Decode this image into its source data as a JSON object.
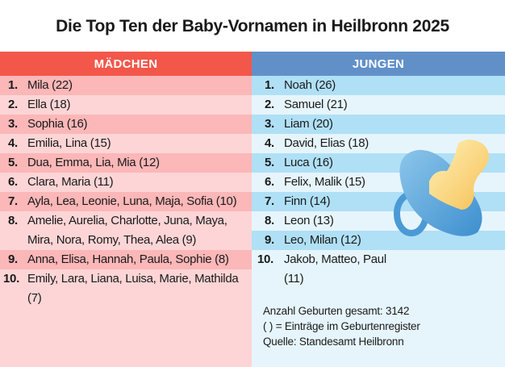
{
  "title": "Die Top Ten der Baby-Vornamen in Heilbronn 2025",
  "girls": {
    "header": "MÄDCHEN",
    "rows": [
      {
        "rank": "1.",
        "names": "Mila (22)"
      },
      {
        "rank": "2.",
        "names": "Ella (18)"
      },
      {
        "rank": "3.",
        "names": "Sophia (16)"
      },
      {
        "rank": "4.",
        "names": "Emilia, Lina (15)"
      },
      {
        "rank": "5.",
        "names": "Dua, Emma, Lia, Mia (12)"
      },
      {
        "rank": "6.",
        "names": "Clara, Maria (11)"
      },
      {
        "rank": "7.",
        "names": "Ayla, Lea, Leonie, Luna, Maja, Sofia (10)"
      },
      {
        "rank": "8.",
        "names": "Amelie, Aurelia, Charlotte, Juna, Maya, Mira, Nora, Romy, Thea, Alea (9)"
      },
      {
        "rank": "9.",
        "names": "Anna, Elisa, Hannah, Paula, Sophie (8)"
      },
      {
        "rank": "10.",
        "names": "Emily, Lara, Liana, Luisa, Marie, Mathilda (7)"
      }
    ]
  },
  "boys": {
    "header": "JUNGEN",
    "rows": [
      {
        "rank": "1.",
        "names": "Noah (26)"
      },
      {
        "rank": "2.",
        "names": "Samuel (21)"
      },
      {
        "rank": "3.",
        "names": "Liam (20)"
      },
      {
        "rank": "4.",
        "names": "David, Elias (18)"
      },
      {
        "rank": "5.",
        "names": "Luca (16)"
      },
      {
        "rank": "6.",
        "names": "Felix, Malik (15)"
      },
      {
        "rank": "7.",
        "names": "Finn (14)"
      },
      {
        "rank": "8.",
        "names": "Leon (13)"
      },
      {
        "rank": "9.",
        "names": "Leo, Milan (12)"
      },
      {
        "rank": "10.",
        "names": "Jakob, Matteo, Paul (11)"
      }
    ]
  },
  "notes": [
    "Anzahl Geburten gesamt: 3142",
    "( ) = Einträge im Geburtenregister",
    "Quelle: Standesamt Heilbronn"
  ]
}
